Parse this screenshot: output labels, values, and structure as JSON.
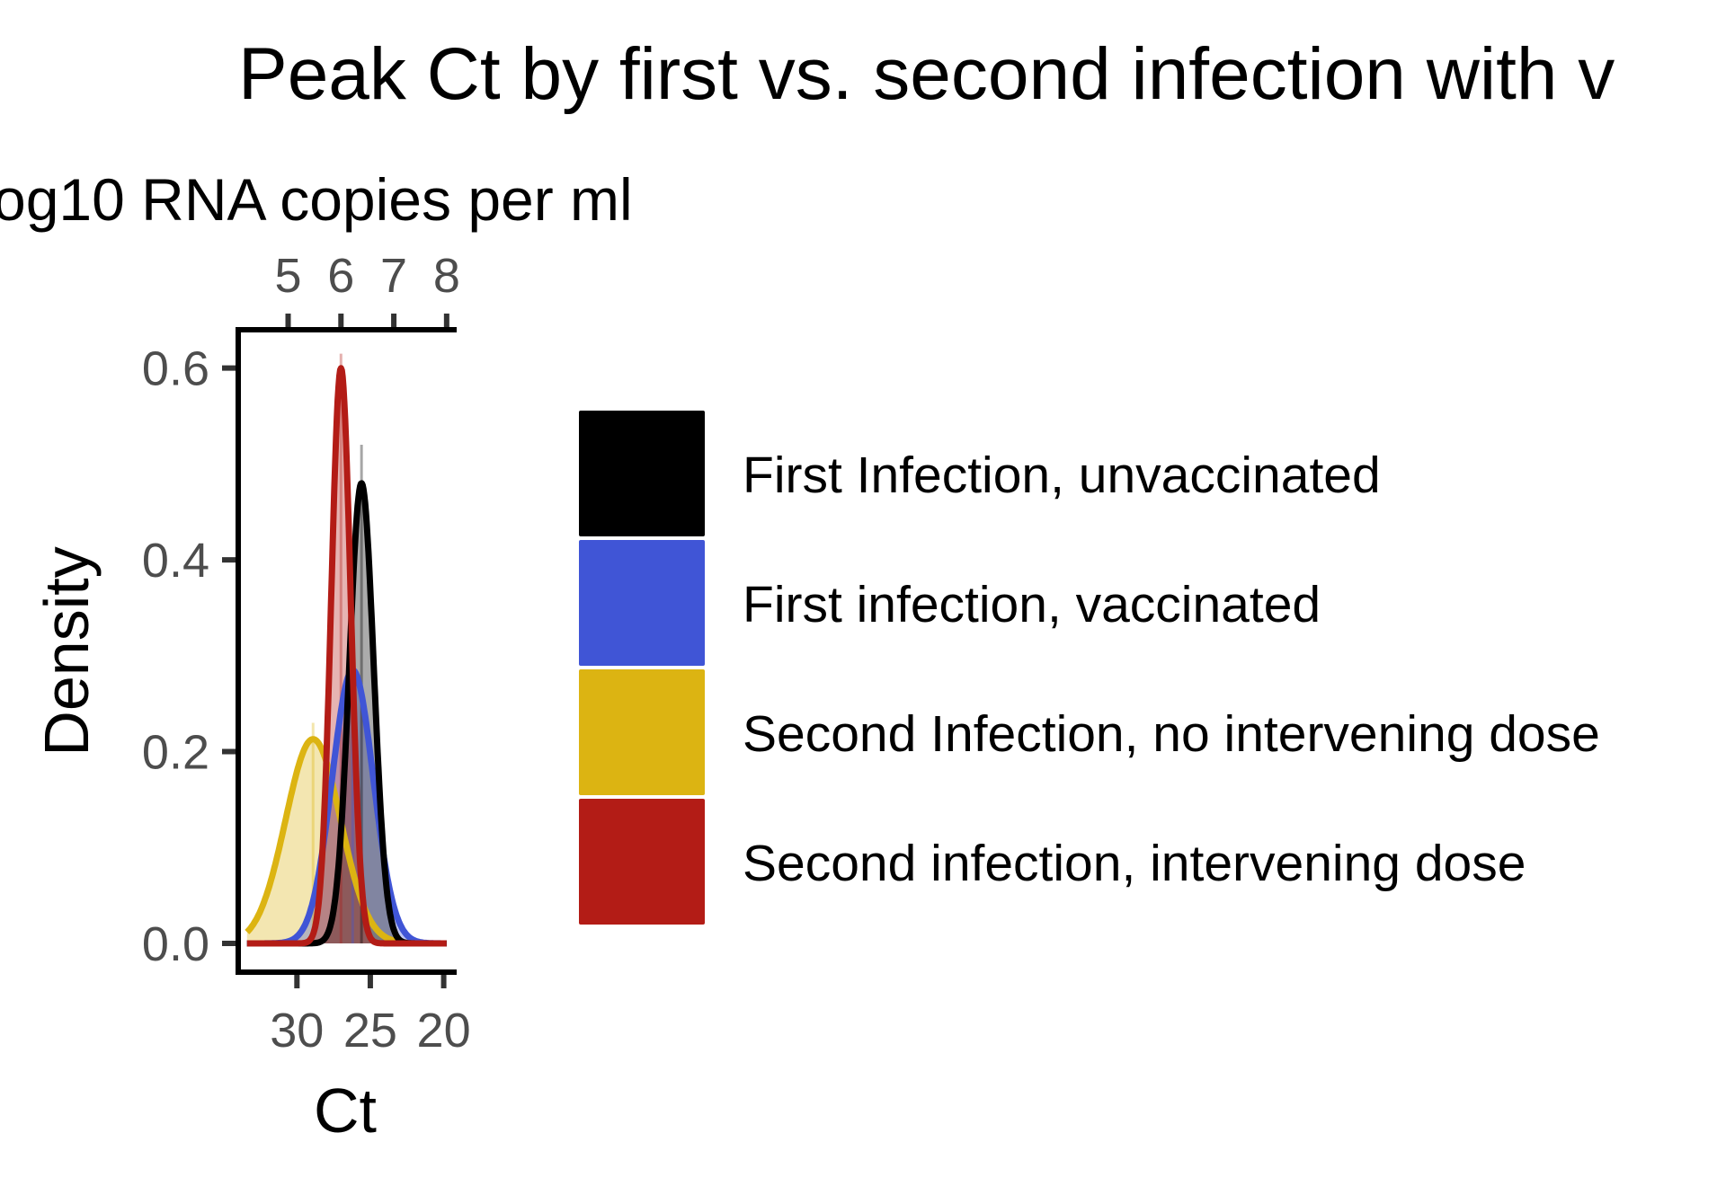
{
  "chart_data": {
    "type": "area",
    "title": "Peak Ct by first vs. second infection with v",
    "xlabel": "Ct",
    "ylabel": "Density",
    "secondary_xlabel": "og10 RNA copies per ml",
    "x_reversed": true,
    "xlim": [
      34,
      19.3
    ],
    "ylim": [
      -0.03,
      0.64
    ],
    "x_ticks": [
      30,
      25,
      20
    ],
    "x_tick_labels": [
      "30",
      "25",
      "20"
    ],
    "secondary_x_ticks": [
      5,
      6,
      7,
      8
    ],
    "secondary_x_tick_labels": [
      "5",
      "6",
      "7",
      "8"
    ],
    "secondary_x_positions_ct": [
      30.6,
      27.0,
      23.4,
      19.8
    ],
    "y_ticks": [
      0.0,
      0.2,
      0.4,
      0.6
    ],
    "y_tick_labels": [
      "0.0",
      "0.2",
      "0.4",
      "0.6"
    ],
    "grid": false,
    "legend_position": "right",
    "series": [
      {
        "name": "First Infection, unvaccinated",
        "color": "#000000",
        "mean": 25.6,
        "sd": 0.83,
        "peak": 0.48,
        "sample_peak": 0.52
      },
      {
        "name": "First infection, vaccinated",
        "color": "#4055d6",
        "mean": 26.2,
        "sd": 1.4,
        "peak": 0.285,
        "sample_peak": 0.31
      },
      {
        "name": "Second Infection, no intervening dose",
        "color": "#dcb412",
        "mean": 28.9,
        "sd": 1.87,
        "peak": 0.213,
        "sample_peak": 0.23
      },
      {
        "name": "Second infection, intervening dose",
        "color": "#b31c16",
        "mean": 27.0,
        "sd": 0.66,
        "peak": 0.6,
        "sample_peak": 0.615
      }
    ]
  }
}
